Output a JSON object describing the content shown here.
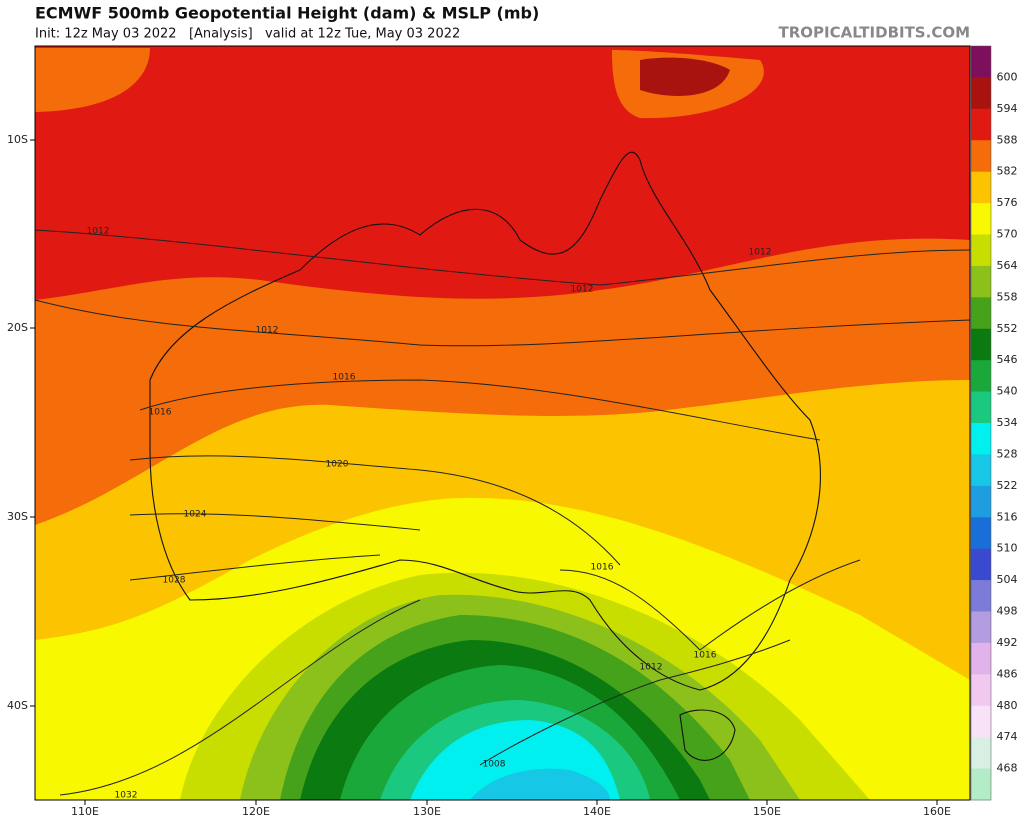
{
  "header": {
    "title": "ECMWF 500mb Geopotential Height (dam) & MSLP (mb)",
    "subtitle": "Init: 12z May 03 2022   [Analysis]   valid at 12z Tue, May 03 2022",
    "credit": "TROPICALTIDBITS.COM"
  },
  "map": {
    "lat_labels": [
      "10S",
      "20S",
      "30S",
      "40S"
    ],
    "lon_labels": [
      "110E",
      "120E",
      "130E",
      "140E",
      "150E",
      "160E"
    ],
    "isobar_labels": [
      "1012",
      "1012",
      "1016",
      "1016",
      "1020",
      "1024",
      "1028",
      "1032",
      "1012",
      "1012",
      "1016",
      "1016",
      "1012",
      "1008"
    ]
  },
  "colorbar": {
    "levels": [
      600,
      594,
      588,
      582,
      576,
      570,
      564,
      558,
      552,
      546,
      540,
      534,
      528,
      522,
      516,
      510,
      504,
      498,
      492,
      486,
      480,
      474,
      468
    ],
    "colors": [
      "#7d0f5c",
      "#a8130f",
      "#e01a12",
      "#f56c0a",
      "#fcc400",
      "#f8f800",
      "#c8de00",
      "#8cc01a",
      "#46a21a",
      "#0b7a10",
      "#1aa83a",
      "#1ac880",
      "#00f0f0",
      "#16c8e6",
      "#1e9ee0",
      "#1a6ed8",
      "#3a4ad0",
      "#7c7cd8",
      "#b39de0",
      "#e2b2ea",
      "#f0c8f0",
      "#f7e2f7",
      "#d8f0e4",
      "#b4ecc8"
    ]
  }
}
